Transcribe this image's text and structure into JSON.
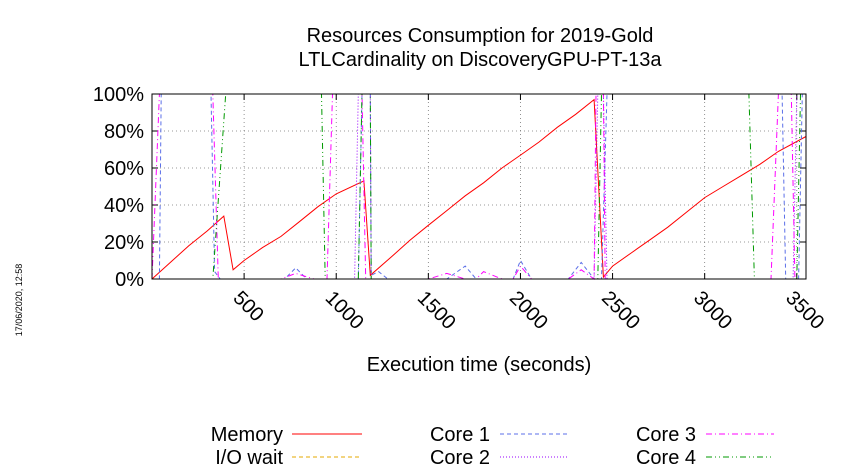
{
  "chart_data": {
    "type": "line",
    "title": [
      "Resources Consumption for 2019-Gold",
      "LTLCardinality on DiscoveryGPU-PT-13a"
    ],
    "xlabel": "Execution time (seconds)",
    "ylabel": "",
    "xlim": [
      0,
      3550
    ],
    "ylim": [
      0,
      100
    ],
    "x_ticks": [
      500,
      1000,
      1500,
      2000,
      2500,
      3000,
      3500
    ],
    "x_tick_labels": [
      "500",
      "1000",
      "1500",
      "2000",
      "2500",
      "3000",
      "3500"
    ],
    "y_ticks": [
      0,
      20,
      40,
      60,
      80,
      100
    ],
    "y_tick_labels": [
      "0%",
      "20%",
      "40%",
      "60%",
      "80%",
      "100%"
    ],
    "grid": true,
    "legend_position": "bottom",
    "timestamp": "17/06/2020, 12:58",
    "series": [
      {
        "name": "Memory",
        "color": "#ff0000",
        "dash": "solid",
        "points": [
          [
            0,
            0
          ],
          [
            100,
            9
          ],
          [
            200,
            18
          ],
          [
            300,
            26
          ],
          [
            390,
            34
          ],
          [
            440,
            5
          ],
          [
            500,
            10
          ],
          [
            600,
            17
          ],
          [
            700,
            23
          ],
          [
            800,
            31
          ],
          [
            900,
            39
          ],
          [
            1000,
            46
          ],
          [
            1150,
            53
          ],
          [
            1185,
            2
          ],
          [
            1300,
            12
          ],
          [
            1400,
            21
          ],
          [
            1500,
            29
          ],
          [
            1600,
            37
          ],
          [
            1700,
            45
          ],
          [
            1800,
            52
          ],
          [
            1900,
            60
          ],
          [
            2000,
            67
          ],
          [
            2100,
            74
          ],
          [
            2200,
            82
          ],
          [
            2300,
            89
          ],
          [
            2400,
            97
          ],
          [
            2450,
            1
          ],
          [
            2500,
            7
          ],
          [
            2600,
            14
          ],
          [
            2700,
            21
          ],
          [
            2800,
            28
          ],
          [
            2900,
            36
          ],
          [
            3000,
            44
          ],
          [
            3100,
            50
          ],
          [
            3200,
            56
          ],
          [
            3300,
            62
          ],
          [
            3400,
            69
          ],
          [
            3550,
            77
          ]
        ]
      },
      {
        "name": "I/O wait",
        "color": "#e6a800",
        "dash": "dashed",
        "points": [
          [
            0,
            0
          ],
          [
            3550,
            0
          ]
        ]
      },
      {
        "name": "Core 1",
        "color": "#5b6fe8",
        "dash": "dashed",
        "points": [
          [
            0,
            0
          ],
          [
            40,
            0
          ],
          [
            50,
            100
          ],
          [
            320,
            100
          ],
          [
            340,
            4
          ],
          [
            370,
            0
          ],
          [
            720,
            0
          ],
          [
            780,
            6
          ],
          [
            840,
            0
          ],
          [
            1120,
            0
          ],
          [
            1140,
            100
          ],
          [
            1185,
            100
          ],
          [
            1190,
            2
          ],
          [
            1230,
            4
          ],
          [
            1280,
            0
          ],
          [
            1600,
            0
          ],
          [
            1700,
            7
          ],
          [
            1760,
            0
          ],
          [
            1960,
            0
          ],
          [
            2000,
            10
          ],
          [
            2060,
            0
          ],
          [
            2260,
            0
          ],
          [
            2330,
            9
          ],
          [
            2400,
            0
          ],
          [
            2440,
            0
          ],
          [
            2470,
            100
          ],
          [
            3420,
            100
          ],
          [
            3440,
            0
          ],
          [
            3510,
            0
          ],
          [
            3530,
            100
          ],
          [
            3550,
            100
          ]
        ]
      },
      {
        "name": "Core 2",
        "color": "#9a00ff",
        "dash": "dotted",
        "points": [
          [
            0,
            0
          ],
          [
            1100,
            0
          ],
          [
            1120,
            100
          ],
          [
            1185,
            100
          ],
          [
            1190,
            0
          ],
          [
            2400,
            0
          ],
          [
            2420,
            100
          ],
          [
            2450,
            100
          ],
          [
            2470,
            0
          ],
          [
            3480,
            0
          ],
          [
            3500,
            100
          ],
          [
            3550,
            100
          ]
        ]
      },
      {
        "name": "Core 3",
        "color": "#ff00ff",
        "dash": "dashdot",
        "points": [
          [
            0,
            0
          ],
          [
            40,
            100
          ],
          [
            330,
            100
          ],
          [
            360,
            0
          ],
          [
            700,
            0
          ],
          [
            780,
            3
          ],
          [
            880,
            0
          ],
          [
            950,
            0
          ],
          [
            980,
            100
          ],
          [
            1140,
            100
          ],
          [
            1160,
            0
          ],
          [
            1500,
            0
          ],
          [
            1600,
            3
          ],
          [
            1700,
            0
          ],
          [
            1760,
            0
          ],
          [
            1800,
            4
          ],
          [
            1900,
            0
          ],
          [
            1960,
            0
          ],
          [
            2000,
            7
          ],
          [
            2060,
            0
          ],
          [
            2260,
            0
          ],
          [
            2330,
            5
          ],
          [
            2400,
            0
          ],
          [
            2410,
            100
          ],
          [
            2450,
            100
          ],
          [
            2460,
            0
          ],
          [
            3360,
            0
          ],
          [
            3400,
            100
          ],
          [
            3470,
            100
          ],
          [
            3490,
            0
          ],
          [
            3550,
            0
          ]
        ]
      },
      {
        "name": "Core 4",
        "color": "#009900",
        "dash": "dashdotdot",
        "points": [
          [
            0,
            0
          ],
          [
            330,
            0
          ],
          [
            400,
            100
          ],
          [
            920,
            100
          ],
          [
            940,
            0
          ],
          [
            1120,
            0
          ],
          [
            1140,
            100
          ],
          [
            1185,
            100
          ],
          [
            1190,
            0
          ],
          [
            2420,
            0
          ],
          [
            2440,
            100
          ],
          [
            3240,
            100
          ],
          [
            3270,
            0
          ],
          [
            3500,
            0
          ],
          [
            3520,
            100
          ],
          [
            3550,
            100
          ]
        ]
      }
    ]
  }
}
